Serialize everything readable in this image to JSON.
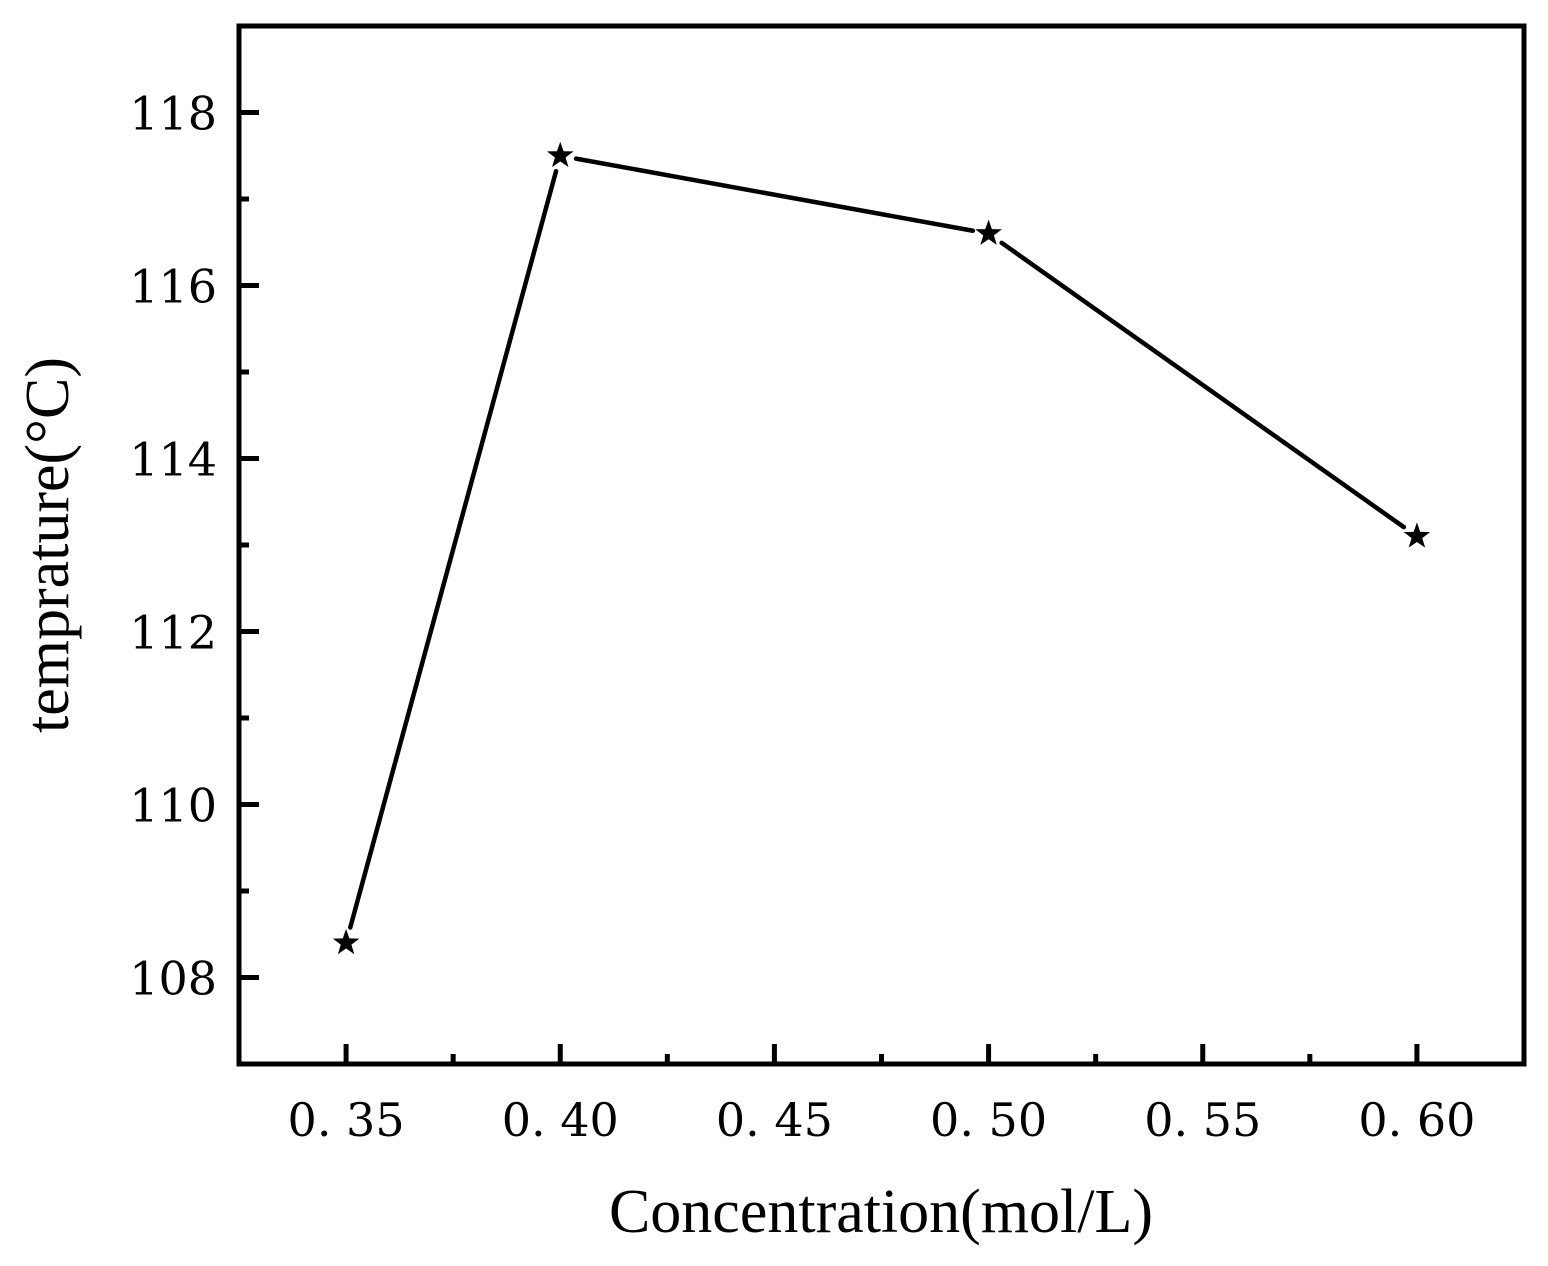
{
  "chart_data": {
    "type": "line",
    "xlabel": "Concentration(mol/L)",
    "ylabel": "temprature(°C)",
    "xlim": [
      0.325,
      0.625
    ],
    "ylim": [
      107,
      119
    ],
    "x_ticks": [
      0.35,
      0.4,
      0.45,
      0.5,
      0.55,
      0.6
    ],
    "x_tick_labels": [
      "0. 35",
      "0. 40",
      "0. 45",
      "0. 50",
      "0. 55",
      "0. 60"
    ],
    "x_minor_ticks": [
      0.375,
      0.425,
      0.475,
      0.525,
      0.575
    ],
    "y_ticks": [
      108,
      110,
      112,
      114,
      116,
      118
    ],
    "y_tick_labels": [
      "108",
      "110",
      "112",
      "114",
      "116",
      "118"
    ],
    "y_minor_ticks": [
      109,
      111,
      113,
      115,
      117
    ],
    "grid": false,
    "marker": "star",
    "line_color": "#000000",
    "series": [
      {
        "x": [
          0.35,
          0.4,
          0.5,
          0.6
        ],
        "y": [
          108.4,
          117.5,
          116.6,
          113.1
        ]
      }
    ]
  }
}
